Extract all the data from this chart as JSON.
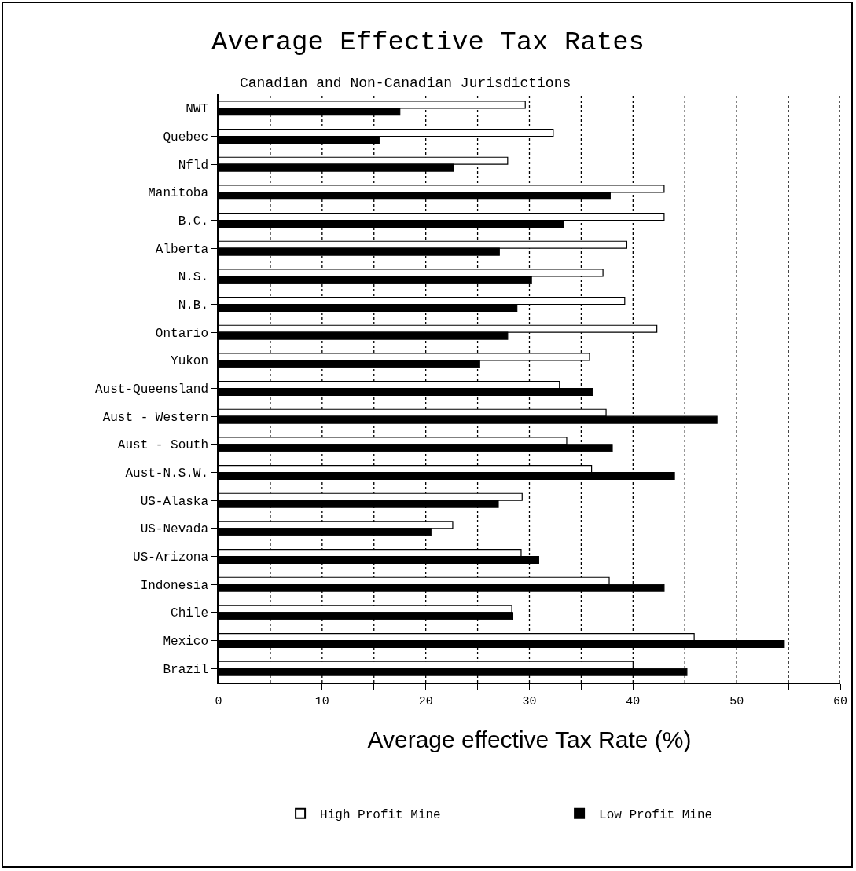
{
  "chart_data": {
    "type": "bar",
    "orientation": "horizontal",
    "title": "Average Effective Tax Rates",
    "subtitle": "Canadian and Non-Canadian Jurisdictions",
    "xlabel": "Average effective Tax Rate (%)",
    "categories": [
      "NWT",
      "Quebec",
      "Nfld",
      "Manitoba",
      "B.C.",
      "Alberta",
      "N.S.",
      "N.B.",
      "Ontario",
      "Yukon",
      "Aust-Queensland",
      "Aust - Western",
      "Aust - South",
      "Aust-N.S.W.",
      "US-Alaska",
      "US-Nevada",
      "US-Arizona",
      "Indonesia",
      "Chile",
      "Mexico",
      "Brazil"
    ],
    "series": [
      {
        "name": "High Profit Mine",
        "color": "#ffffff",
        "values": [
          29.6,
          32.3,
          27.9,
          43.0,
          43.0,
          39.4,
          37.1,
          39.2,
          42.3,
          35.8,
          32.9,
          37.4,
          33.6,
          36.0,
          29.3,
          22.6,
          29.2,
          37.7,
          28.3,
          45.9,
          40.0
        ]
      },
      {
        "name": "Low Profit Mine",
        "color": "#000000",
        "values": [
          17.5,
          15.5,
          22.7,
          37.8,
          33.3,
          27.1,
          30.2,
          28.8,
          27.9,
          25.2,
          36.1,
          48.1,
          38.0,
          44.0,
          27.0,
          20.5,
          30.9,
          43.0,
          28.4,
          54.6,
          45.2
        ]
      }
    ],
    "xlim": [
      0,
      60
    ],
    "xticks": [
      0,
      {
        "value": 5,
        "label": null
      },
      10,
      {
        "value": 15,
        "label": null
      },
      20,
      {
        "value": 25,
        "label": null
      },
      30,
      {
        "value": 35,
        "label": null
      },
      40,
      {
        "value": 45,
        "label": null
      },
      50,
      {
        "value": 55,
        "label": null
      },
      60
    ],
    "grid": "x",
    "line_style": "dotted",
    "legend": "bottom"
  }
}
